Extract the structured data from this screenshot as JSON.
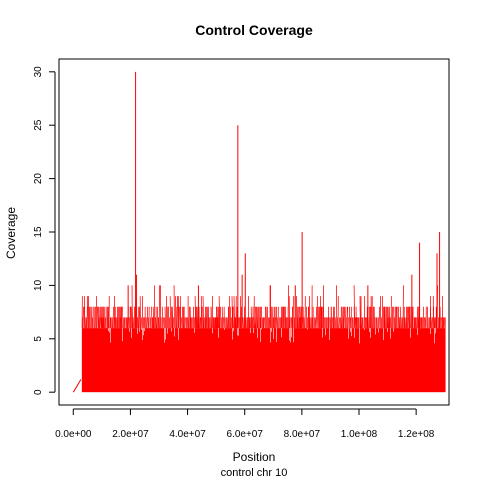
{
  "chart_data": {
    "type": "area",
    "title": "Control Coverage",
    "xlabel": "Position",
    "subtitle": "control chr 10",
    "ylabel": "Coverage",
    "xlim": [
      -5000000,
      131500000
    ],
    "ylim": [
      -1.2,
      31.2
    ],
    "x_ticks": [
      0,
      20000000,
      40000000,
      60000000,
      80000000,
      100000000,
      120000000
    ],
    "x_tick_labels": [
      "0.0e+00",
      "2.0e+07",
      "4.0e+07",
      "6.0e+07",
      "8.0e+07",
      "1.0e+08",
      "1.2e+08"
    ],
    "y_ticks": [
      0,
      5,
      10,
      15,
      20,
      25,
      30
    ],
    "y_tick_labels": [
      "0",
      "5",
      "10",
      "15",
      "20",
      "25",
      "30"
    ],
    "grid": false,
    "color": "#ff0000",
    "data_start": 3000000,
    "data_end": 130300000,
    "baseline_level": 6,
    "ramp": {
      "x": [
        0,
        2700000
      ],
      "y": [
        0,
        1.2
      ]
    },
    "peaks": [
      {
        "x": 21800000,
        "y": 30
      },
      {
        "x": 57600000,
        "y": 25
      },
      {
        "x": 80100000,
        "y": 15
      },
      {
        "x": 128200000,
        "y": 15
      },
      {
        "x": 121200000,
        "y": 14
      },
      {
        "x": 60200000,
        "y": 13
      },
      {
        "x": 127300000,
        "y": 13
      },
      {
        "x": 59100000,
        "y": 11
      },
      {
        "x": 22100000,
        "y": 11
      },
      {
        "x": 118500000,
        "y": 11
      },
      {
        "x": 19200000,
        "y": 10
      },
      {
        "x": 43800000,
        "y": 10
      },
      {
        "x": 77700000,
        "y": 10
      },
      {
        "x": 103100000,
        "y": 10
      }
    ]
  }
}
